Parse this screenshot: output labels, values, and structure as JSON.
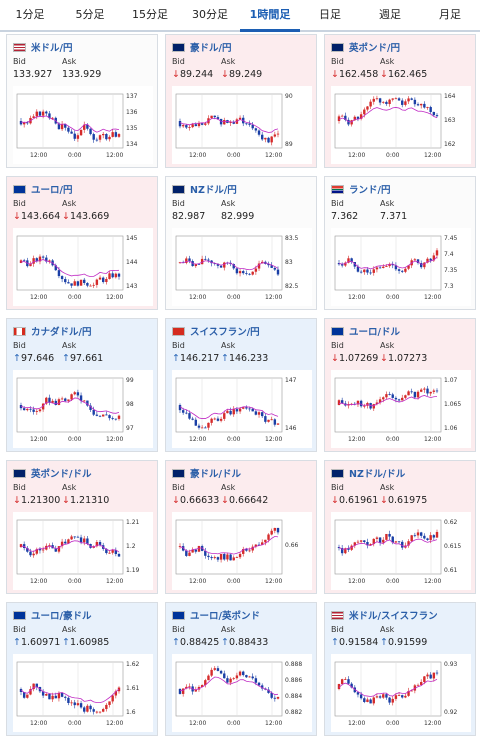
{
  "tabs": [
    {
      "label": "1分足",
      "active": false
    },
    {
      "label": "5分足",
      "active": false
    },
    {
      "label": "15分足",
      "active": false
    },
    {
      "label": "30分足",
      "active": false
    },
    {
      "label": "1時間足",
      "active": true
    },
    {
      "label": "日足",
      "active": false
    },
    {
      "label": "週足",
      "active": false
    },
    {
      "label": "月足",
      "active": false
    }
  ],
  "colors": {
    "up_candle": "#d52b2b",
    "down_candle": "#1a3fa6",
    "ma": "#c02bc4",
    "accent": "#1c5eb3",
    "card_down_bg": "#fcecee",
    "card_up_bg": "#e8f1fb"
  },
  "labels": {
    "bid": "Bid",
    "ask": "Ask"
  },
  "cards": [
    {
      "pair": "米ドル/円",
      "flag": "us-flag",
      "trend": "neutral",
      "bid": "133.927",
      "ask": "133.929",
      "bid_arrow": "",
      "ask_arrow": "",
      "y_ticks": [
        "137",
        "136",
        "135",
        "134"
      ],
      "x_ticks": [
        "12:00",
        "0:00",
        "12:00"
      ]
    },
    {
      "pair": "豪ドル/円",
      "flag": "au-flag",
      "trend": "down",
      "bid": "89.244",
      "ask": "89.249",
      "bid_arrow": "↓",
      "ask_arrow": "↓",
      "y_ticks": [
        "90",
        "89"
      ],
      "x_ticks": [
        "12:00",
        "0:00",
        "12:00"
      ]
    },
    {
      "pair": "英ポンド/円",
      "flag": "uk-flag",
      "trend": "down",
      "bid": "162.458",
      "ask": "162.465",
      "bid_arrow": "↓",
      "ask_arrow": "↓",
      "y_ticks": [
        "164",
        "163",
        "162"
      ],
      "x_ticks": [
        "12:00",
        "0:00",
        "12:00"
      ]
    },
    {
      "pair": "ユーロ/円",
      "flag": "eu-flag",
      "trend": "down",
      "bid": "143.664",
      "ask": "143.669",
      "bid_arrow": "↓",
      "ask_arrow": "↓",
      "y_ticks": [
        "145",
        "144",
        "143"
      ],
      "x_ticks": [
        "12:00",
        "0:00",
        "12:00"
      ]
    },
    {
      "pair": "NZドル/円",
      "flag": "nz-flag",
      "trend": "neutral",
      "bid": "82.987",
      "ask": "82.999",
      "bid_arrow": "",
      "ask_arrow": "",
      "y_ticks": [
        "83.5",
        "83",
        "82.5"
      ],
      "x_ticks": [
        "12:00",
        "0:00",
        "12:00"
      ]
    },
    {
      "pair": "ランド/円",
      "flag": "za-flag",
      "trend": "neutral",
      "bid": "7.362",
      "ask": "7.371",
      "bid_arrow": "",
      "ask_arrow": "",
      "y_ticks": [
        "7.45",
        "7.4",
        "7.35",
        "7.3"
      ],
      "x_ticks": [
        "12:00",
        "0:00",
        "12:00"
      ]
    },
    {
      "pair": "カナダドル/円",
      "flag": "ca-flag",
      "trend": "up",
      "bid": "97.646",
      "ask": "97.661",
      "bid_arrow": "↑",
      "ask_arrow": "↑",
      "y_ticks": [
        "99",
        "98",
        "97"
      ],
      "x_ticks": [
        "12:00",
        "0:00",
        "12:00"
      ]
    },
    {
      "pair": "スイスフラン/円",
      "flag": "ch-flag",
      "trend": "up",
      "bid": "146.217",
      "ask": "146.233",
      "bid_arrow": "↑",
      "ask_arrow": "↑",
      "y_ticks": [
        "147",
        "146"
      ],
      "x_ticks": [
        "12:00",
        "0:00",
        "12:00"
      ]
    },
    {
      "pair": "ユーロ/ドル",
      "flag": "eu-us-flag",
      "trend": "down",
      "bid": "1.07269",
      "ask": "1.07273",
      "bid_arrow": "↓",
      "ask_arrow": "↓",
      "y_ticks": [
        "1.07",
        "1.065",
        "1.06"
      ],
      "x_ticks": [
        "12:00",
        "0:00",
        "12:00"
      ]
    },
    {
      "pair": "英ポンド/ドル",
      "flag": "uk-us-flag",
      "trend": "down",
      "bid": "1.21300",
      "ask": "1.21310",
      "bid_arrow": "↓",
      "ask_arrow": "↓",
      "y_ticks": [
        "1.21",
        "1.2",
        "1.19"
      ],
      "x_ticks": [
        "12:00",
        "0:00",
        "12:00"
      ]
    },
    {
      "pair": "豪ドル/ドル",
      "flag": "au-us-flag",
      "trend": "down",
      "bid": "0.66633",
      "ask": "0.66642",
      "bid_arrow": "↓",
      "ask_arrow": "↓",
      "y_ticks": [
        "0.66"
      ],
      "x_ticks": [
        "12:00",
        "0:00",
        "12:00"
      ]
    },
    {
      "pair": "NZドル/ドル",
      "flag": "nz-us-flag",
      "trend": "down",
      "bid": "0.61961",
      "ask": "0.61975",
      "bid_arrow": "↓",
      "ask_arrow": "↓",
      "y_ticks": [
        "0.62",
        "0.615",
        "0.61"
      ],
      "x_ticks": [
        "12:00",
        "0:00",
        "12:00"
      ]
    },
    {
      "pair": "ユーロ/豪ドル",
      "flag": "eu-au-flag",
      "trend": "up",
      "bid": "1.60971",
      "ask": "1.60985",
      "bid_arrow": "↑",
      "ask_arrow": "↑",
      "y_ticks": [
        "1.62",
        "1.61",
        "1.6"
      ],
      "x_ticks": [
        "12:00",
        "0:00",
        "12:00"
      ]
    },
    {
      "pair": "ユーロ/英ポンド",
      "flag": "eu-uk-flag",
      "trend": "up",
      "bid": "0.88425",
      "ask": "0.88433",
      "bid_arrow": "↑",
      "ask_arrow": "↑",
      "y_ticks": [
        "0.888",
        "0.886",
        "0.884",
        "0.882"
      ],
      "x_ticks": [
        "12:00",
        "0:00",
        "12:00"
      ]
    },
    {
      "pair": "米ドル/スイスフラン",
      "flag": "us-ch-flag",
      "trend": "up",
      "bid": "0.91584",
      "ask": "0.91599",
      "bid_arrow": "↑",
      "ask_arrow": "↑",
      "y_ticks": [
        "0.93",
        "0.92"
      ],
      "x_ticks": [
        "12:00",
        "0:00",
        "12:00"
      ]
    }
  ]
}
